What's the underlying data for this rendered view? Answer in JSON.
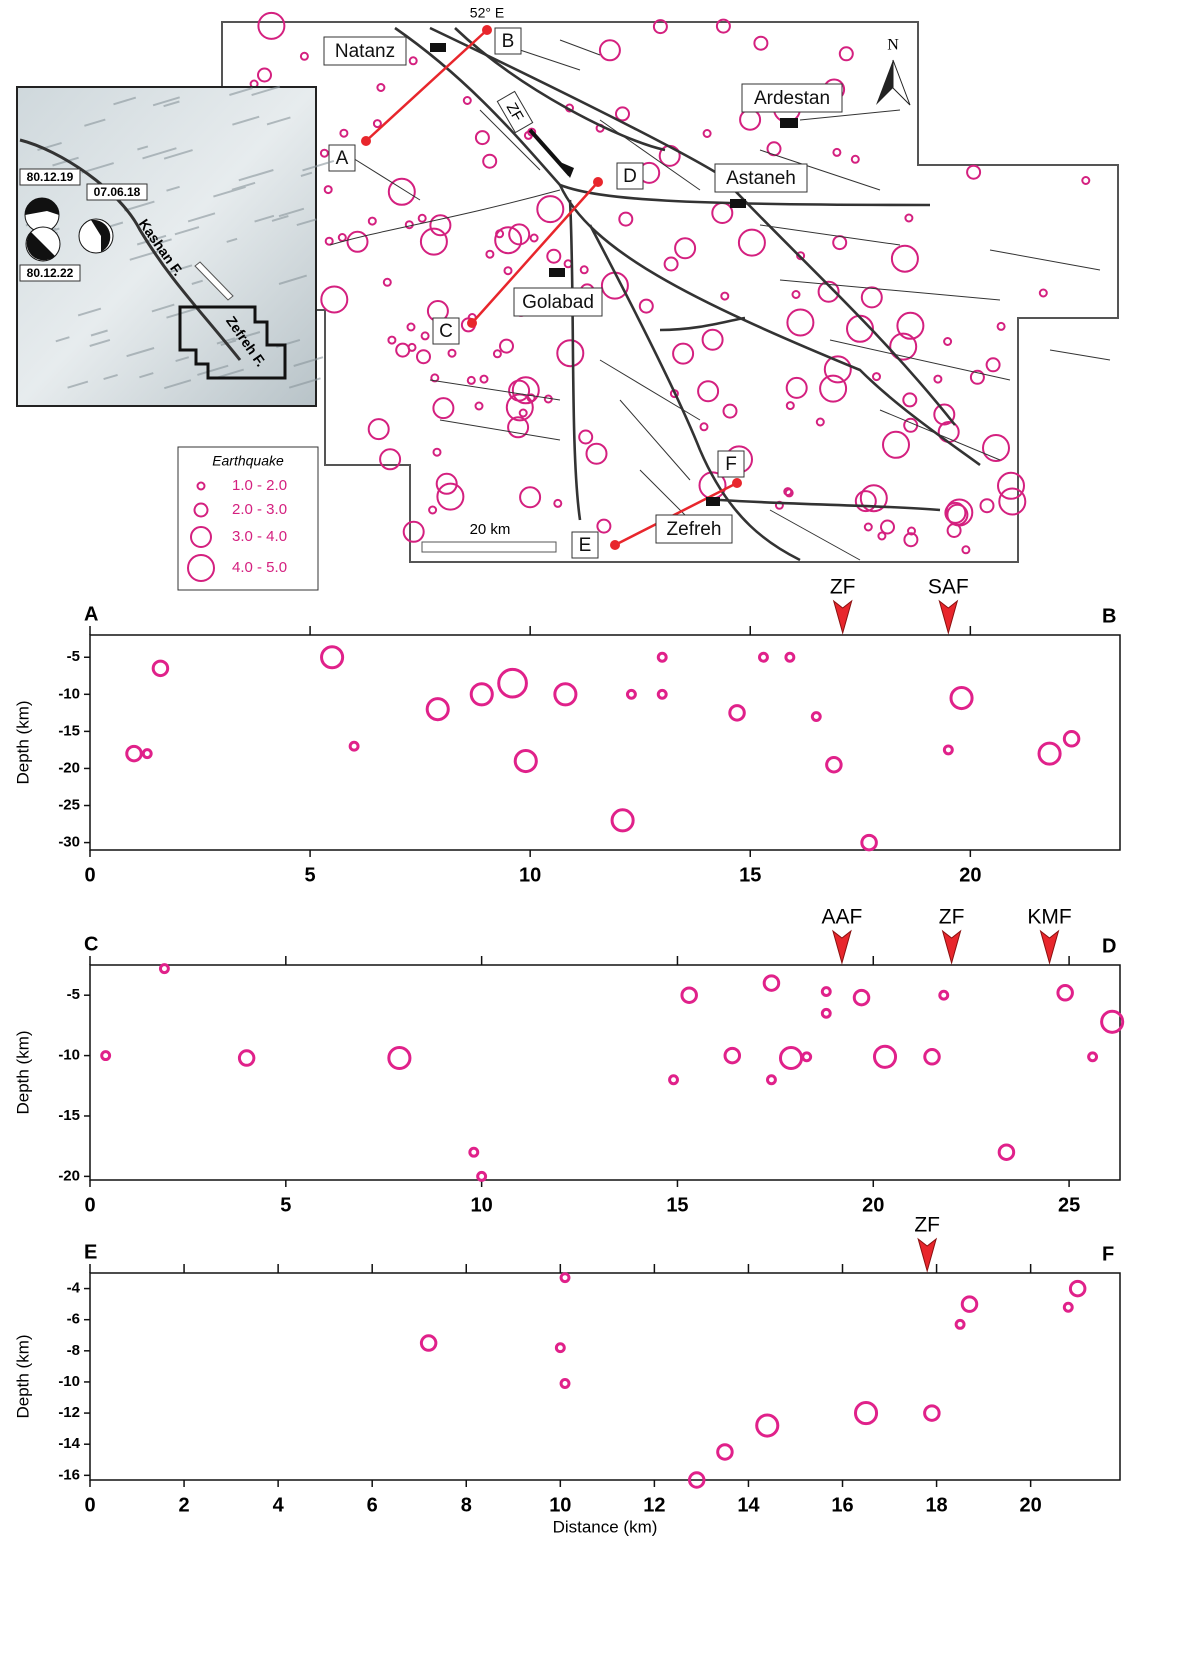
{
  "map": {
    "longitude_label": "52° E",
    "towns": [
      "Natanz",
      "Ardestan",
      "Astaneh",
      "Golabad",
      "Zefreh"
    ],
    "section_ends": [
      "A",
      "B",
      "C",
      "D",
      "E",
      "F"
    ],
    "fault_label": "ZF",
    "north": "N",
    "scale": "20 km",
    "inset": {
      "mechanisms": [
        "80.12.19",
        "07.06.18",
        "80.12.22"
      ],
      "faults": [
        "Kashan F.",
        "Zefreh F."
      ]
    },
    "legend": {
      "title": "Earthquake",
      "classes": [
        "1.0 - 2.0",
        "2.0 - 3.0",
        "3.0 - 4.0",
        "4.0 - 5.0"
      ]
    }
  },
  "chart_data": [
    {
      "type": "scatter",
      "start_label": "A",
      "end_label": "B",
      "y_label": "Depth (km)",
      "color": "#e0218a",
      "marker_color": "#e8262c",
      "x": [
        1.0,
        1.3,
        1.6,
        5.5,
        6.0,
        7.9,
        8.9,
        9.6,
        9.9,
        10.8,
        12.1,
        12.3,
        13.0,
        13.0,
        14.7,
        15.3,
        15.9,
        16.5,
        16.9,
        17.7,
        19.5,
        19.8,
        21.8,
        22.3
      ],
      "values": [
        -18,
        -18,
        -6.5,
        -5,
        -17,
        -12,
        -10,
        -8.5,
        -19,
        -10,
        -27,
        -10,
        -5,
        -10,
        -12.5,
        -5,
        -5,
        -13,
        -19.5,
        -30,
        -17.5,
        -10.5,
        -18,
        -16
      ],
      "sizes": [
        2.5,
        1.5,
        2.5,
        3.5,
        1.5,
        3.5,
        3.5,
        4.5,
        3.5,
        3.5,
        3.5,
        1.5,
        1.5,
        1.5,
        2.5,
        1.5,
        1.5,
        1.5,
        2.5,
        2.5,
        1.5,
        3.5,
        3.5,
        2.5
      ],
      "annotations": [
        {
          "label": "ZF",
          "x": 17.1
        },
        {
          "label": "SAF",
          "x": 19.5
        }
      ],
      "xlim": [
        0,
        23.4
      ],
      "ylim": [
        -31,
        -2
      ],
      "xticks": [
        0,
        5,
        10,
        15,
        20
      ],
      "yticks": [
        -5,
        -10,
        -15,
        -20,
        -25,
        -30
      ]
    },
    {
      "type": "scatter",
      "start_label": "C",
      "end_label": "D",
      "y_label": "Depth (km)",
      "color": "#e0218a",
      "marker_color": "#e8262c",
      "x": [
        0.4,
        1.9,
        4.0,
        7.9,
        9.8,
        10.0,
        14.9,
        15.3,
        16.4,
        17.4,
        17.4,
        17.9,
        18.3,
        18.8,
        18.8,
        19.7,
        20.3,
        21.5,
        21.8,
        23.4,
        24.9,
        25.6,
        26.1
      ],
      "values": [
        -10,
        -2.8,
        -10.2,
        -10.2,
        -18,
        -20,
        -12,
        -5,
        -10,
        -4,
        -12,
        -10.2,
        -10.1,
        -4.7,
        -6.5,
        -5.2,
        -10.1,
        -10.1,
        -5,
        -18,
        -4.8,
        -10.1,
        -7.2
      ],
      "sizes": [
        1.5,
        1.5,
        2.5,
        3.5,
        1.5,
        1.5,
        1.5,
        2.5,
        2.5,
        2.5,
        1.5,
        3.5,
        1.5,
        1.5,
        1.5,
        2.5,
        3.5,
        2.5,
        1.5,
        2.5,
        2.5,
        1.5,
        3.5
      ],
      "annotations": [
        {
          "label": "AAF",
          "x": 19.2
        },
        {
          "label": "ZF",
          "x": 22.0
        },
        {
          "label": "KMF",
          "x": 24.5
        }
      ],
      "xlim": [
        0,
        26.3
      ],
      "ylim": [
        -20.3,
        -2.5
      ],
      "xticks": [
        0,
        5,
        10,
        15,
        20,
        25
      ],
      "yticks": [
        -5,
        -10,
        -15,
        -20
      ]
    },
    {
      "type": "scatter",
      "start_label": "E",
      "end_label": "F",
      "y_label": "Depth (km)",
      "x_label": "Distance (km)",
      "color": "#e0218a",
      "marker_color": "#e8262c",
      "x": [
        7.2,
        10.1,
        10.0,
        10.1,
        12.9,
        13.5,
        14.4,
        16.5,
        17.9,
        18.5,
        18.7,
        20.8,
        21.0
      ],
      "values": [
        -7.5,
        -3.3,
        -7.8,
        -10.1,
        -16.3,
        -14.5,
        -12.8,
        -12,
        -12,
        -6.3,
        -5,
        -5.2,
        -4
      ],
      "sizes": [
        2.5,
        1.5,
        1.5,
        1.5,
        2.5,
        2.5,
        3.5,
        3.5,
        2.5,
        1.5,
        2.5,
        1.5,
        2.5
      ],
      "annotations": [
        {
          "label": "ZF",
          "x": 17.8
        }
      ],
      "xlim": [
        0,
        21.9
      ],
      "ylim": [
        -16.3,
        -3
      ],
      "xticks": [
        0,
        2,
        4,
        6,
        8,
        10,
        12,
        14,
        16,
        18,
        20
      ],
      "yticks": [
        -4,
        -6,
        -8,
        -10,
        -12,
        -14,
        -16
      ]
    }
  ]
}
